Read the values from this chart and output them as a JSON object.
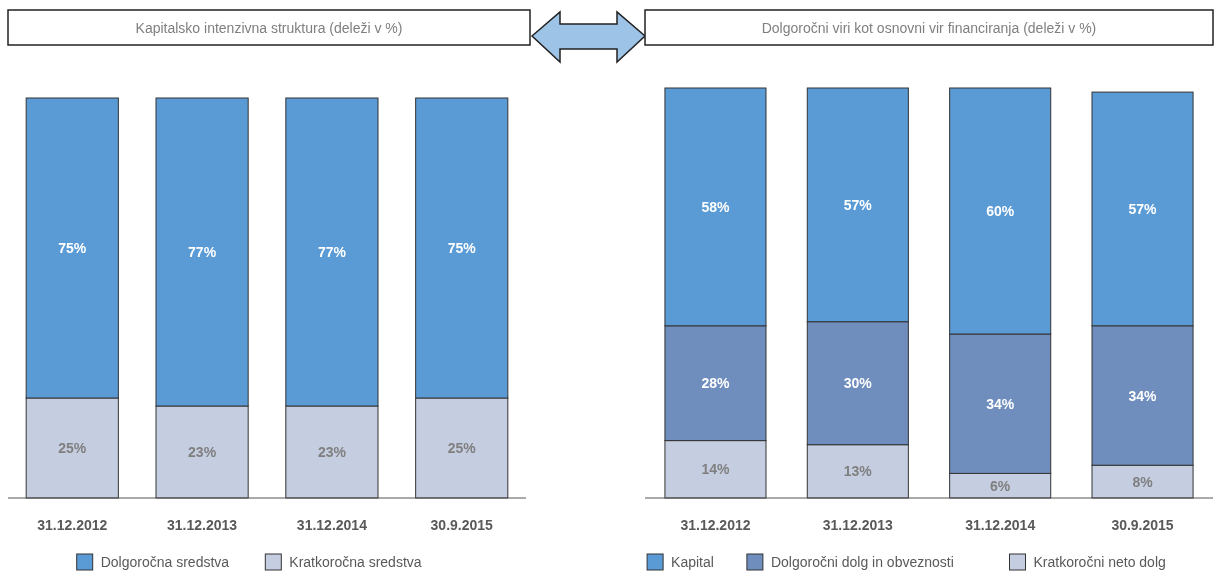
{
  "chart_data": [
    {
      "type": "bar",
      "title": "Kapitalsko intenzivna struktura (deleži v %)",
      "stacked": true,
      "legend": "bottom",
      "categories": [
        "31.12.2012",
        "31.12.2013",
        "31.12.2014",
        "30.9.2015"
      ],
      "series": [
        {
          "name": "Kratkoročna sredstva",
          "color": "#c5cde0",
          "values": [
            25,
            23,
            23,
            25
          ],
          "value_labels": [
            "25%",
            "23%",
            "23%",
            "25%"
          ]
        },
        {
          "name": "Dolgoročna sredstva",
          "color": "#5b9bd5",
          "values": [
            75,
            77,
            77,
            75
          ],
          "value_labels": [
            "75%",
            "77%",
            "77%",
            "75%"
          ]
        }
      ]
    },
    {
      "type": "bar",
      "title": "Dolgoročni viri kot osnovni vir financiranja (deleži v %)",
      "stacked": true,
      "legend": "bottom",
      "categories": [
        "31.12.2012",
        "31.12.2013",
        "31.12.2014",
        "30.9.2015"
      ],
      "series": [
        {
          "name": "Kratkoročni neto dolg",
          "color": "#c5cde0",
          "values": [
            14,
            13,
            6,
            8
          ],
          "value_labels": [
            "14%",
            "13%",
            "6%",
            "8%"
          ]
        },
        {
          "name": "Dolgoročni dolg in obveznosti",
          "color": "#6f8dbd",
          "values": [
            28,
            30,
            34,
            34
          ],
          "value_labels": [
            "28%",
            "30%",
            "34%",
            "34%"
          ]
        },
        {
          "name": "Kapital",
          "color": "#5b9bd5",
          "values": [
            58,
            57,
            60,
            57
          ],
          "value_labels": [
            "58%",
            "57%",
            "60%",
            "57%"
          ]
        }
      ]
    }
  ]
}
